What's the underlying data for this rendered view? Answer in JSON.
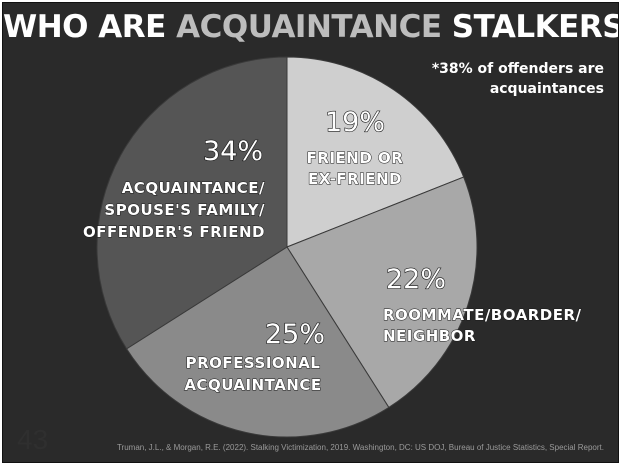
{
  "title": {
    "prefix": "WHO ARE ",
    "accent": "ACQUAINTANCE",
    "suffix": " STALKERS?"
  },
  "footnote": {
    "line1": "*38% of offenders are",
    "line2": "acquaintances"
  },
  "chart_data": {
    "type": "pie",
    "title": "WHO ARE ACQUAINTANCE STALKERS?",
    "slices": [
      {
        "pct_label": "19%",
        "value": 19,
        "lines": [
          "FRIEND OR",
          "EX-FRIEND"
        ],
        "color": "#cfcfcf"
      },
      {
        "pct_label": "22%",
        "value": 22,
        "lines": [
          "ROOMMATE/BOARDER/",
          "NEIGHBOR"
        ],
        "color": "#a8a8a8"
      },
      {
        "pct_label": "25%",
        "value": 25,
        "lines": [
          "PROFESSIONAL",
          "ACQUAINTANCE"
        ],
        "color": "#8a8a8a"
      },
      {
        "pct_label": "34%",
        "value": 34,
        "lines": [
          "ACQUAINTANCE/",
          "SPOUSE'S FAMILY/",
          "OFFENDER'S FRIEND"
        ],
        "color": "#555555"
      }
    ]
  },
  "page_number": "43",
  "citation": "Truman, J.L., & Morgan, R.E. (2022). Stalking Victimization, 2019. Washington, DC: US DOJ, Bureau of Justice Statistics, Special Report."
}
